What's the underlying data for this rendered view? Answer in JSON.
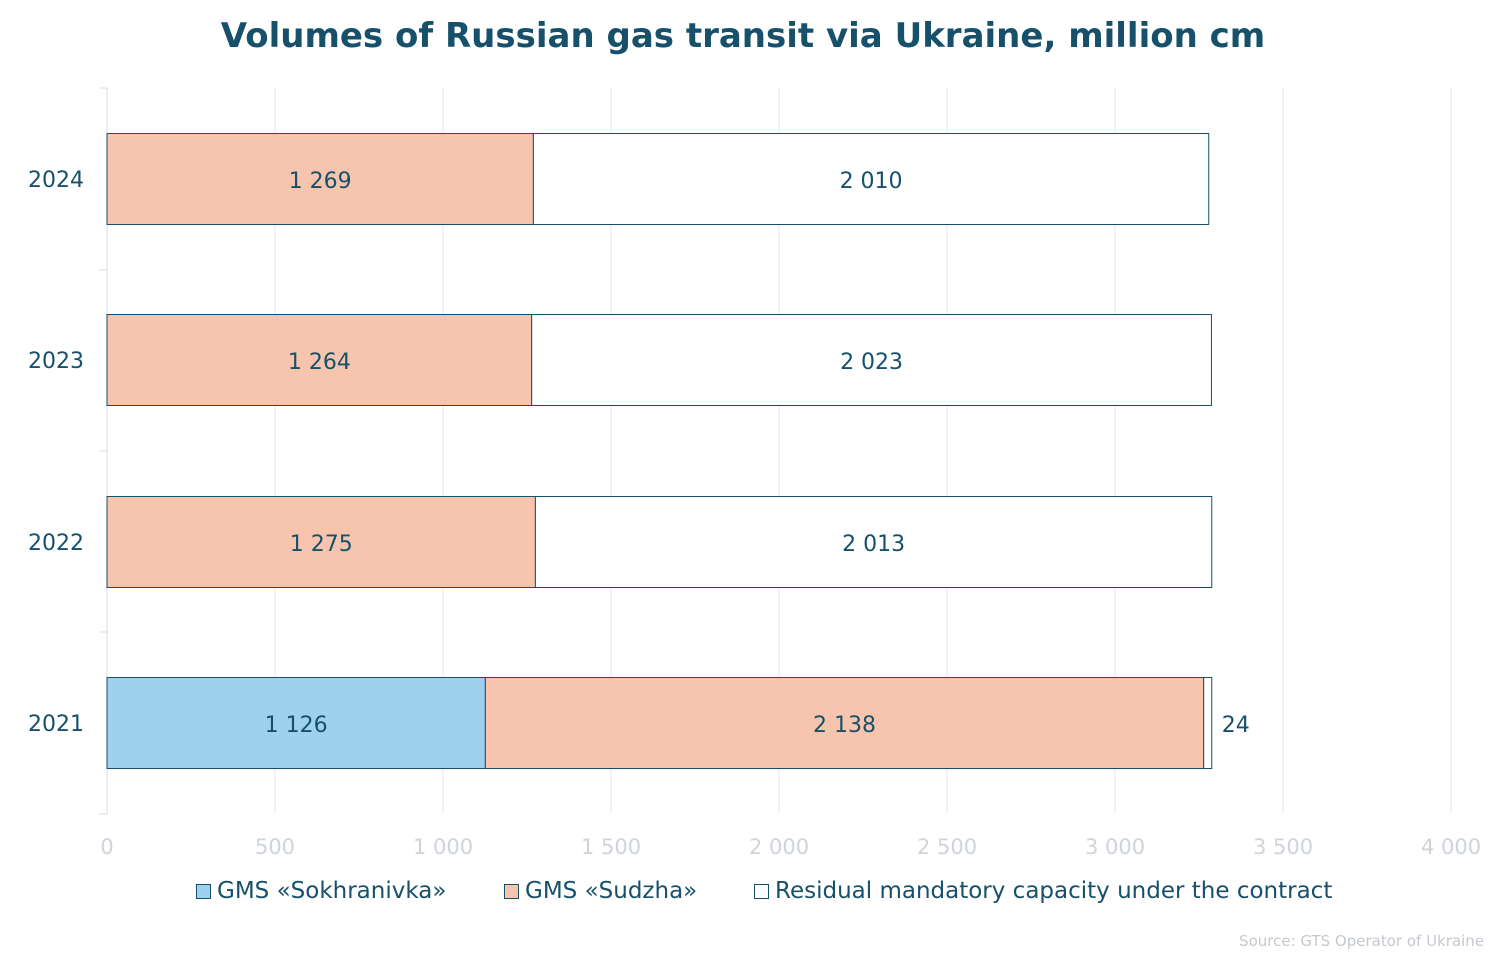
{
  "title": "Volumes of Russian gas transit via Ukraine, million cm",
  "source": "Source: GTS Operator of Ukraine",
  "chart_data": {
    "type": "bar",
    "orientation": "horizontal",
    "stacked": true,
    "categories": [
      "2024",
      "2023",
      "2022",
      "2021"
    ],
    "series": [
      {
        "name": "GMS «Sokhranivka»",
        "color": "#9ed1ec",
        "values": [
          0,
          0,
          0,
          1126
        ],
        "labels": [
          "",
          "",
          "",
          "1 126"
        ]
      },
      {
        "name": "GMS «Sudzha»",
        "color": "#f7c5ae",
        "values": [
          1269,
          1264,
          1275,
          2138
        ],
        "labels": [
          "1 269",
          "1 264",
          "1 275",
          "2 138"
        ]
      },
      {
        "name": "Residual mandatory capacity under the contract",
        "color": "#ffffff",
        "values": [
          2010,
          2023,
          2013,
          24
        ],
        "labels": [
          "2 010",
          "2 023",
          "2 013",
          "24"
        ]
      }
    ],
    "xlim": [
      0,
      4000
    ],
    "xticks": [
      0,
      500,
      1000,
      1500,
      2000,
      2500,
      3000,
      3500,
      4000
    ],
    "xtick_labels": [
      "0",
      "500",
      "1 000",
      "1 500",
      "2 000",
      "2 500",
      "3 000",
      "3 500",
      "4 000"
    ],
    "grid": true,
    "legend_position": "bottom"
  }
}
